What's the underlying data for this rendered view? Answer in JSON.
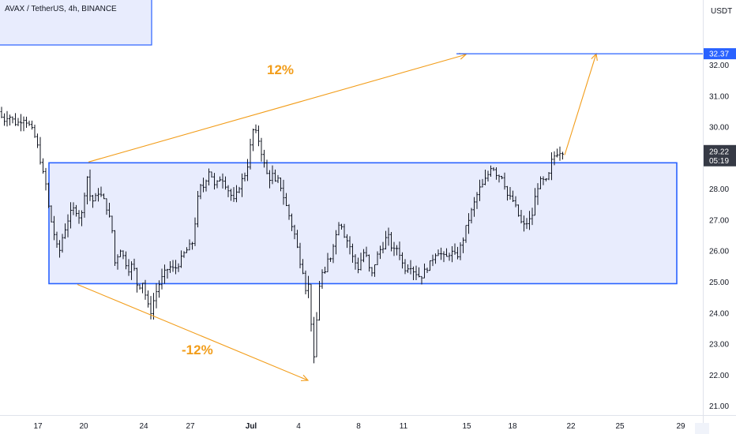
{
  "header": {
    "symbol": "AVAX / TetherUS, 4h, BINANCE",
    "unit": "USDT"
  },
  "chart_data": {
    "type": "ohlc",
    "price_axis": {
      "ylim": [
        20.9,
        33.2
      ],
      "ticks": [
        "21.00",
        "22.00",
        "23.00",
        "24.00",
        "25.00",
        "26.00",
        "27.00",
        "28.00",
        "29.00",
        "30.00",
        "31.00",
        "32.00"
      ]
    },
    "time_axis": {
      "labels": [
        "17",
        "20",
        "24",
        "27",
        "Jul",
        "4",
        "8",
        "11",
        "15",
        "18",
        "22",
        "25",
        "29"
      ],
      "bold_label": "Jul"
    },
    "last_price": {
      "value": 29.22,
      "label": "29.22",
      "countdown": "05:19",
      "color": "#363a45"
    },
    "target": {
      "value": 32.37,
      "label": "32.37",
      "color": "#2962ff"
    },
    "range_box": {
      "top": 28.85,
      "bottom": 24.95,
      "line_color": "#2962ff",
      "fill": "#e8ecfd"
    },
    "annotations": [
      {
        "text": "12%",
        "color": "#f29d1a"
      },
      {
        "text": "-12%",
        "color": "#f29d1a"
      }
    ],
    "series": [
      {
        "name": "",
        "bar_color": "#131722",
        "path": [
          [
            0,
            30.5
          ],
          [
            6,
            30.2
          ],
          [
            12,
            30.4
          ],
          [
            22,
            30.1
          ],
          [
            32,
            30.3
          ],
          [
            40,
            30.0
          ],
          [
            44,
            29.8
          ],
          [
            48,
            29.5
          ],
          [
            52,
            29.0
          ],
          [
            56,
            28.5
          ],
          [
            60,
            28.1
          ],
          [
            64,
            27.2
          ],
          [
            68,
            26.8
          ],
          [
            72,
            26.3
          ],
          [
            76,
            25.9
          ],
          [
            80,
            26.4
          ],
          [
            86,
            26.9
          ],
          [
            90,
            27.2
          ],
          [
            96,
            27.4
          ],
          [
            100,
            27.2
          ],
          [
            104,
            27.0
          ],
          [
            108,
            27.8
          ],
          [
            112,
            28.4
          ],
          [
            116,
            27.7
          ],
          [
            120,
            27.6
          ],
          [
            126,
            27.9
          ],
          [
            132,
            27.7
          ],
          [
            138,
            27.3
          ],
          [
            144,
            26.6
          ],
          [
            148,
            25.3
          ],
          [
            152,
            26.2
          ],
          [
            158,
            25.8
          ],
          [
            164,
            25.4
          ],
          [
            170,
            25.6
          ],
          [
            176,
            24.8
          ],
          [
            182,
            25.0
          ],
          [
            188,
            24.3
          ],
          [
            192,
            24.0
          ],
          [
            198,
            24.6
          ],
          [
            204,
            25.0
          ],
          [
            210,
            25.3
          ],
          [
            216,
            25.5
          ],
          [
            222,
            25.4
          ],
          [
            228,
            25.6
          ],
          [
            234,
            25.9
          ],
          [
            240,
            26.1
          ],
          [
            246,
            26.3
          ],
          [
            250,
            27.3
          ],
          [
            254,
            28.1
          ],
          [
            258,
            28.0
          ],
          [
            262,
            28.3
          ],
          [
            266,
            28.6
          ],
          [
            270,
            28.4
          ],
          [
            274,
            28.0
          ],
          [
            278,
            28.3
          ],
          [
            282,
            28.4
          ],
          [
            286,
            28.2
          ],
          [
            290,
            28.0
          ],
          [
            294,
            27.8
          ],
          [
            298,
            27.6
          ],
          [
            302,
            27.9
          ],
          [
            306,
            28.2
          ],
          [
            310,
            28.4
          ],
          [
            314,
            28.6
          ],
          [
            318,
            29.3
          ],
          [
            322,
            29.9
          ],
          [
            326,
            29.8
          ],
          [
            330,
            29.5
          ],
          [
            334,
            29.0
          ],
          [
            338,
            28.6
          ],
          [
            342,
            28.3
          ],
          [
            346,
            28.5
          ],
          [
            350,
            28.2
          ],
          [
            354,
            28.3
          ],
          [
            358,
            28.0
          ],
          [
            362,
            27.6
          ],
          [
            366,
            27.3
          ],
          [
            370,
            26.9
          ],
          [
            374,
            26.6
          ],
          [
            378,
            26.1
          ],
          [
            382,
            25.6
          ],
          [
            386,
            25.3
          ],
          [
            390,
            24.5
          ],
          [
            394,
            25.3
          ],
          [
            397,
            22.1
          ],
          [
            400,
            22.7
          ],
          [
            404,
            24.4
          ],
          [
            408,
            25.4
          ],
          [
            412,
            25.1
          ],
          [
            416,
            25.7
          ],
          [
            420,
            25.8
          ],
          [
            424,
            26.3
          ],
          [
            428,
            26.6
          ],
          [
            432,
            27.1
          ],
          [
            436,
            26.6
          ],
          [
            440,
            26.4
          ],
          [
            444,
            26.2
          ],
          [
            448,
            25.8
          ],
          [
            452,
            25.6
          ],
          [
            456,
            25.4
          ],
          [
            460,
            25.9
          ],
          [
            464,
            26.0
          ],
          [
            468,
            25.5
          ],
          [
            472,
            25.2
          ],
          [
            476,
            25.6
          ],
          [
            480,
            25.9
          ],
          [
            484,
            26.1
          ],
          [
            488,
            26.2
          ],
          [
            492,
            26.6
          ],
          [
            496,
            26.2
          ],
          [
            500,
            26.0
          ],
          [
            504,
            26.1
          ],
          [
            508,
            25.9
          ],
          [
            512,
            25.5
          ],
          [
            516,
            25.4
          ],
          [
            520,
            25.6
          ],
          [
            524,
            25.4
          ],
          [
            528,
            25.3
          ],
          [
            532,
            25.2
          ],
          [
            536,
            25.2
          ],
          [
            540,
            25.4
          ],
          [
            544,
            25.5
          ],
          [
            548,
            25.7
          ],
          [
            552,
            25.9
          ],
          [
            556,
            26.0
          ],
          [
            560,
            25.9
          ],
          [
            564,
            25.8
          ],
          [
            568,
            25.8
          ],
          [
            572,
            26.0
          ],
          [
            576,
            25.9
          ],
          [
            580,
            25.8
          ],
          [
            584,
            26.1
          ],
          [
            588,
            26.4
          ],
          [
            592,
            26.8
          ],
          [
            596,
            27.1
          ],
          [
            600,
            27.4
          ],
          [
            604,
            27.7
          ],
          [
            608,
            28.0
          ],
          [
            612,
            28.1
          ],
          [
            616,
            28.3
          ],
          [
            620,
            28.5
          ],
          [
            624,
            28.8
          ],
          [
            628,
            28.6
          ],
          [
            632,
            28.4
          ],
          [
            636,
            28.5
          ],
          [
            640,
            28.2
          ],
          [
            644,
            27.8
          ],
          [
            648,
            27.7
          ],
          [
            652,
            27.6
          ],
          [
            656,
            27.3
          ],
          [
            660,
            27.0
          ],
          [
            664,
            26.8
          ],
          [
            668,
            26.9
          ],
          [
            672,
            27.0
          ],
          [
            676,
            27.2
          ],
          [
            680,
            27.9
          ],
          [
            684,
            28.2
          ],
          [
            688,
            28.3
          ],
          [
            692,
            28.2
          ],
          [
            696,
            28.4
          ],
          [
            700,
            28.9
          ],
          [
            704,
            29.1
          ],
          [
            708,
            29.2
          ],
          [
            712,
            29.22
          ]
        ]
      }
    ]
  }
}
